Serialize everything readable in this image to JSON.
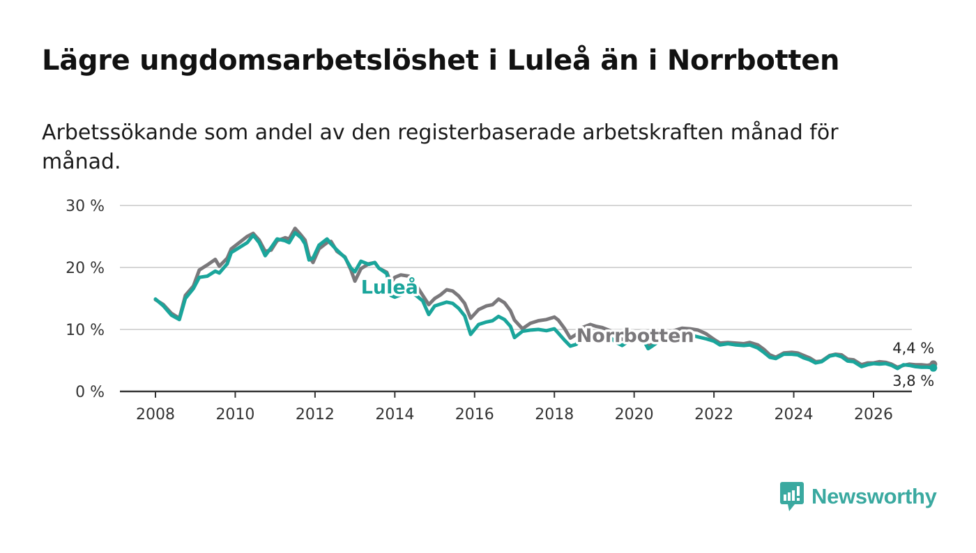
{
  "title": "Lägre ungdomsarbetslöshet i Luleå än i Norrbotten",
  "subtitle": "Arbetssökande som andel av den registerbaserade arbetskraften månad för månad.",
  "brand": {
    "name": "Newsworthy",
    "icon": "newsworthy-logo-icon",
    "color": "#3aa9a0"
  },
  "colors": {
    "lulea": "#1aa59b",
    "norrbotten": "#7a787b",
    "grid": "#d6d6d6",
    "axis": "#333333"
  },
  "chart_data": {
    "type": "line",
    "title": "Lägre ungdomsarbetslöshet i Luleå än i Norrbotten",
    "xlabel": "",
    "ylabel": "",
    "xlim": [
      2007.9,
      2026.9
    ],
    "ylim": [
      0,
      30
    ],
    "grid": true,
    "x_ticks": [
      2008,
      2010,
      2012,
      2014,
      2016,
      2018,
      2020,
      2022,
      2024,
      2026
    ],
    "x_tick_labels": [
      "2008",
      "2010",
      "2012",
      "2014",
      "2016",
      "2018",
      "2020",
      "2022",
      "2024",
      "2026"
    ],
    "y_ticks": [
      0,
      10,
      20,
      30
    ],
    "y_tick_labels": [
      "0 %",
      "10 %",
      "20 %",
      "30 %"
    ],
    "end_labels": {
      "norrbotten": "4,4 %",
      "lulea": "3,8 %"
    },
    "series": [
      {
        "name": "Norrbotten",
        "label": "Norrbotten",
        "color": "#7a787b",
        "points": [
          [
            2008.0,
            14.8
          ],
          [
            2008.2,
            14.0
          ],
          [
            2008.4,
            12.6
          ],
          [
            2008.6,
            11.8
          ],
          [
            2008.75,
            15.5
          ],
          [
            2008.95,
            17.0
          ],
          [
            2009.1,
            19.6
          ],
          [
            2009.3,
            20.4
          ],
          [
            2009.5,
            21.3
          ],
          [
            2009.6,
            20.2
          ],
          [
            2009.8,
            21.5
          ],
          [
            2009.9,
            23.0
          ],
          [
            2010.1,
            24.0
          ],
          [
            2010.3,
            25.0
          ],
          [
            2010.45,
            25.5
          ],
          [
            2010.6,
            24.4
          ],
          [
            2010.75,
            22.6
          ],
          [
            2010.9,
            22.8
          ],
          [
            2011.05,
            24.3
          ],
          [
            2011.25,
            24.8
          ],
          [
            2011.35,
            24.6
          ],
          [
            2011.5,
            26.3
          ],
          [
            2011.65,
            25.2
          ],
          [
            2011.75,
            24.4
          ],
          [
            2011.85,
            21.8
          ],
          [
            2011.95,
            20.8
          ],
          [
            2012.1,
            23.0
          ],
          [
            2012.3,
            24.0
          ],
          [
            2012.4,
            24.2
          ],
          [
            2012.55,
            22.6
          ],
          [
            2012.75,
            21.7
          ],
          [
            2012.9,
            19.6
          ],
          [
            2013.0,
            17.8
          ],
          [
            2013.15,
            19.8
          ],
          [
            2013.35,
            20.6
          ],
          [
            2013.5,
            20.8
          ],
          [
            2013.6,
            19.9
          ],
          [
            2013.8,
            19.2
          ],
          [
            2013.9,
            17.5
          ],
          [
            2014.0,
            18.4
          ],
          [
            2014.15,
            18.8
          ],
          [
            2014.35,
            18.6
          ],
          [
            2014.55,
            17.0
          ],
          [
            2014.7,
            15.5
          ],
          [
            2014.85,
            14.0
          ],
          [
            2015.0,
            15.0
          ],
          [
            2015.15,
            15.6
          ],
          [
            2015.3,
            16.4
          ],
          [
            2015.45,
            16.2
          ],
          [
            2015.6,
            15.4
          ],
          [
            2015.75,
            14.2
          ],
          [
            2015.9,
            11.8
          ],
          [
            2016.1,
            13.2
          ],
          [
            2016.3,
            13.8
          ],
          [
            2016.45,
            14.0
          ],
          [
            2016.6,
            14.9
          ],
          [
            2016.75,
            14.3
          ],
          [
            2016.9,
            13.0
          ],
          [
            2017.0,
            11.5
          ],
          [
            2017.2,
            10.1
          ],
          [
            2017.4,
            11.0
          ],
          [
            2017.6,
            11.4
          ],
          [
            2017.8,
            11.6
          ],
          [
            2018.0,
            12.0
          ],
          [
            2018.1,
            11.5
          ],
          [
            2018.25,
            10.2
          ],
          [
            2018.4,
            8.6
          ],
          [
            2018.55,
            9.2
          ],
          [
            2018.7,
            10.3
          ],
          [
            2018.9,
            10.8
          ],
          [
            2019.05,
            10.5
          ],
          [
            2019.2,
            10.3
          ],
          [
            2019.4,
            9.8
          ],
          [
            2019.55,
            8.8
          ],
          [
            2019.7,
            8.4
          ],
          [
            2019.9,
            8.7
          ],
          [
            2020.1,
            8.5
          ],
          [
            2020.25,
            8.2
          ],
          [
            2020.35,
            7.3
          ],
          [
            2020.45,
            7.6
          ],
          [
            2020.6,
            8.2
          ],
          [
            2020.8,
            8.8
          ],
          [
            2021.0,
            9.8
          ],
          [
            2021.2,
            10.2
          ],
          [
            2021.4,
            10.1
          ],
          [
            2021.6,
            9.9
          ],
          [
            2021.8,
            9.3
          ],
          [
            2022.0,
            8.4
          ],
          [
            2022.15,
            7.8
          ],
          [
            2022.35,
            7.9
          ],
          [
            2022.55,
            7.8
          ],
          [
            2022.75,
            7.7
          ],
          [
            2022.9,
            7.9
          ],
          [
            2023.1,
            7.5
          ],
          [
            2023.25,
            6.8
          ],
          [
            2023.4,
            5.9
          ],
          [
            2023.55,
            5.5
          ],
          [
            2023.75,
            6.2
          ],
          [
            2023.95,
            6.3
          ],
          [
            2024.1,
            6.2
          ],
          [
            2024.25,
            5.8
          ],
          [
            2024.4,
            5.4
          ],
          [
            2024.55,
            4.8
          ],
          [
            2024.7,
            4.9
          ],
          [
            2024.9,
            5.8
          ],
          [
            2025.05,
            6.0
          ],
          [
            2025.2,
            5.9
          ],
          [
            2025.35,
            5.2
          ],
          [
            2025.5,
            5.1
          ],
          [
            2025.7,
            4.3
          ],
          [
            2025.85,
            4.6
          ],
          [
            2026.0,
            4.6
          ],
          [
            2026.15,
            4.8
          ],
          [
            2026.3,
            4.7
          ],
          [
            2026.45,
            4.4
          ],
          [
            2026.6,
            3.9
          ],
          [
            2026.75,
            4.2
          ],
          [
            2026.9,
            4.4
          ],
          [
            2027.05,
            4.3
          ],
          [
            2027.2,
            4.3
          ],
          [
            2027.35,
            4.2
          ],
          [
            2027.5,
            4.4
          ]
        ]
      },
      {
        "name": "Luleå",
        "label": "Luleå",
        "color": "#1aa59b",
        "points": [
          [
            2008.0,
            14.9
          ],
          [
            2008.2,
            13.8
          ],
          [
            2008.4,
            12.3
          ],
          [
            2008.6,
            11.6
          ],
          [
            2008.75,
            15.0
          ],
          [
            2008.95,
            16.6
          ],
          [
            2009.1,
            18.4
          ],
          [
            2009.3,
            18.6
          ],
          [
            2009.5,
            19.4
          ],
          [
            2009.6,
            19.1
          ],
          [
            2009.8,
            20.6
          ],
          [
            2009.9,
            22.4
          ],
          [
            2010.1,
            23.2
          ],
          [
            2010.3,
            24.0
          ],
          [
            2010.45,
            25.2
          ],
          [
            2010.6,
            24.0
          ],
          [
            2010.75,
            21.9
          ],
          [
            2010.9,
            23.2
          ],
          [
            2011.05,
            24.6
          ],
          [
            2011.25,
            24.3
          ],
          [
            2011.35,
            24.0
          ],
          [
            2011.5,
            25.6
          ],
          [
            2011.65,
            24.8
          ],
          [
            2011.75,
            23.8
          ],
          [
            2011.85,
            21.2
          ],
          [
            2011.95,
            21.5
          ],
          [
            2012.1,
            23.6
          ],
          [
            2012.3,
            24.6
          ],
          [
            2012.4,
            23.8
          ],
          [
            2012.55,
            22.8
          ],
          [
            2012.75,
            21.6
          ],
          [
            2012.9,
            19.9
          ],
          [
            2013.0,
            19.3
          ],
          [
            2013.15,
            21.0
          ],
          [
            2013.35,
            20.5
          ],
          [
            2013.5,
            20.8
          ],
          [
            2013.6,
            19.9
          ],
          [
            2013.8,
            19.0
          ],
          [
            2013.9,
            15.5
          ],
          [
            2014.0,
            15.2
          ],
          [
            2014.15,
            15.6
          ],
          [
            2014.35,
            16.2
          ],
          [
            2014.55,
            15.4
          ],
          [
            2014.7,
            14.6
          ],
          [
            2014.85,
            12.4
          ],
          [
            2015.0,
            13.8
          ],
          [
            2015.15,
            14.1
          ],
          [
            2015.3,
            14.4
          ],
          [
            2015.45,
            14.2
          ],
          [
            2015.6,
            13.4
          ],
          [
            2015.75,
            12.2
          ],
          [
            2015.9,
            9.2
          ],
          [
            2016.1,
            10.8
          ],
          [
            2016.3,
            11.2
          ],
          [
            2016.45,
            11.4
          ],
          [
            2016.6,
            12.1
          ],
          [
            2016.75,
            11.6
          ],
          [
            2016.9,
            10.5
          ],
          [
            2017.0,
            8.7
          ],
          [
            2017.2,
            9.7
          ],
          [
            2017.4,
            9.9
          ],
          [
            2017.6,
            10.0
          ],
          [
            2017.8,
            9.8
          ],
          [
            2018.0,
            10.1
          ],
          [
            2018.1,
            9.4
          ],
          [
            2018.25,
            8.3
          ],
          [
            2018.4,
            7.3
          ],
          [
            2018.55,
            7.6
          ],
          [
            2018.7,
            9.1
          ],
          [
            2018.9,
            9.5
          ],
          [
            2019.05,
            9.3
          ],
          [
            2019.2,
            9.1
          ],
          [
            2019.4,
            8.7
          ],
          [
            2019.55,
            7.9
          ],
          [
            2019.7,
            7.4
          ],
          [
            2019.9,
            8.3
          ],
          [
            2020.1,
            8.4
          ],
          [
            2020.25,
            8.1
          ],
          [
            2020.35,
            6.9
          ],
          [
            2020.45,
            7.3
          ],
          [
            2020.6,
            8.0
          ],
          [
            2020.8,
            8.5
          ],
          [
            2021.0,
            9.0
          ],
          [
            2021.2,
            9.3
          ],
          [
            2021.4,
            9.1
          ],
          [
            2021.6,
            8.8
          ],
          [
            2021.8,
            8.5
          ],
          [
            2022.0,
            8.1
          ],
          [
            2022.15,
            7.5
          ],
          [
            2022.35,
            7.7
          ],
          [
            2022.55,
            7.5
          ],
          [
            2022.75,
            7.4
          ],
          [
            2022.9,
            7.5
          ],
          [
            2023.1,
            7.0
          ],
          [
            2023.25,
            6.3
          ],
          [
            2023.4,
            5.5
          ],
          [
            2023.55,
            5.3
          ],
          [
            2023.75,
            6.0
          ],
          [
            2023.95,
            6.0
          ],
          [
            2024.1,
            5.9
          ],
          [
            2024.25,
            5.4
          ],
          [
            2024.4,
            5.1
          ],
          [
            2024.55,
            4.6
          ],
          [
            2024.7,
            4.8
          ],
          [
            2024.9,
            5.7
          ],
          [
            2025.05,
            5.9
          ],
          [
            2025.2,
            5.6
          ],
          [
            2025.35,
            4.9
          ],
          [
            2025.5,
            4.8
          ],
          [
            2025.7,
            4.0
          ],
          [
            2025.85,
            4.3
          ],
          [
            2026.0,
            4.5
          ],
          [
            2026.15,
            4.4
          ],
          [
            2026.3,
            4.5
          ],
          [
            2026.45,
            4.2
          ],
          [
            2026.6,
            3.7
          ],
          [
            2026.75,
            4.3
          ],
          [
            2026.9,
            4.2
          ],
          [
            2027.05,
            4.0
          ],
          [
            2027.2,
            3.9
          ],
          [
            2027.35,
            3.9
          ],
          [
            2027.5,
            3.8
          ]
        ]
      }
    ]
  }
}
